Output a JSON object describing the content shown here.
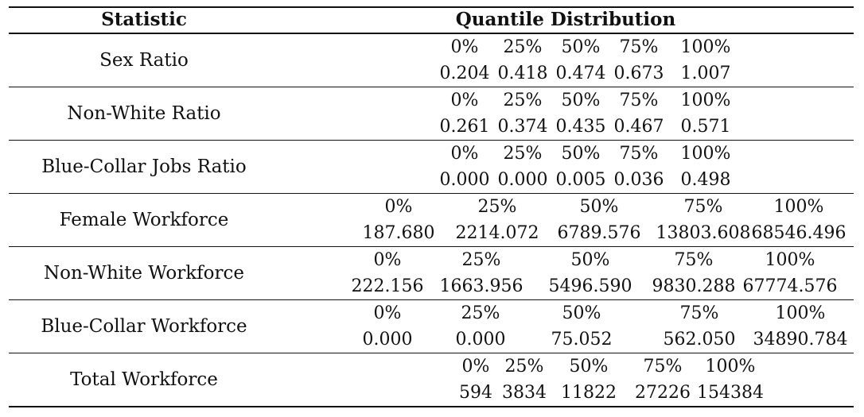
{
  "header": {
    "statistic": "Statistic",
    "quantile": "Quantile Distribution"
  },
  "rows": [
    {
      "label": "Sex Ratio",
      "q": [
        "0%",
        "25%",
        "50%",
        "75%",
        "100%"
      ],
      "v": [
        "0.204",
        "0.418",
        "0.474",
        "0.673",
        "1.007"
      ]
    },
    {
      "label": "Non-White Ratio",
      "q": [
        "0%",
        "25%",
        "50%",
        "75%",
        "100%"
      ],
      "v": [
        "0.261",
        "0.374",
        "0.435",
        "0.467",
        "0.571"
      ]
    },
    {
      "label": "Blue-Collar Jobs Ratio",
      "q": [
        "0%",
        "25%",
        "50%",
        "75%",
        "100%"
      ],
      "v": [
        "0.000",
        "0.000",
        "0.005",
        "0.036",
        "0.498"
      ]
    },
    {
      "label": "Female Workforce",
      "q": [
        "0%",
        "25%",
        "50%",
        "75%",
        "100%"
      ],
      "v": [
        "187.680",
        "2214.072",
        "6789.576",
        "13803.608",
        "68546.496"
      ]
    },
    {
      "label": "Non-White Workforce",
      "q": [
        "0%",
        "25%",
        "50%",
        "75%",
        "100%"
      ],
      "v": [
        "222.156",
        "1663.956",
        "5496.590",
        "9830.288",
        "67774.576"
      ]
    },
    {
      "label": "Blue-Collar Workforce",
      "q": [
        "0%",
        "25%",
        "50%",
        "75%",
        "100%"
      ],
      "v": [
        "0.000",
        "0.000",
        "75.052",
        "562.050",
        "34890.784"
      ]
    },
    {
      "label": "Total Workforce",
      "q": [
        "0%",
        "25%",
        "50%",
        "75%",
        "100%"
      ],
      "v": [
        "594",
        "3834",
        "11822",
        "27226",
        "154384"
      ]
    }
  ]
}
